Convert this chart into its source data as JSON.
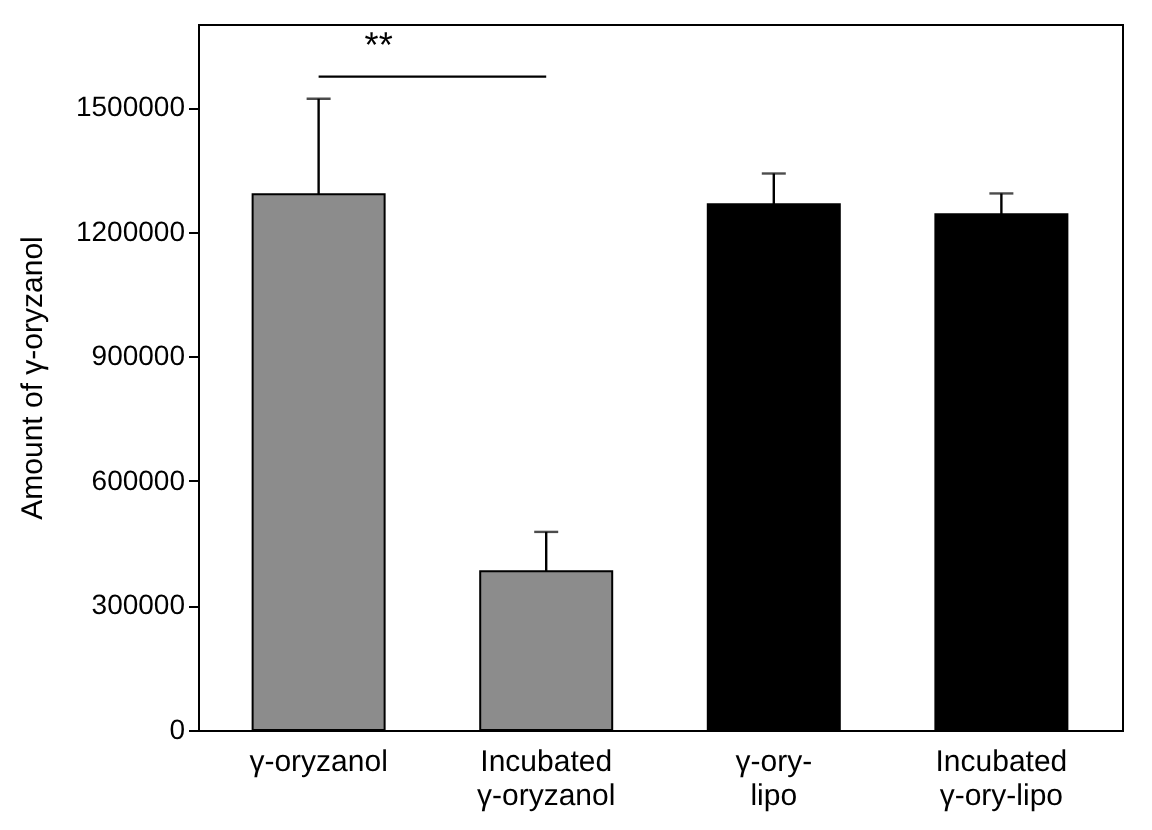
{
  "chart_data": {
    "type": "bar",
    "ylabel": "Amount of γ-oryzanol",
    "categories": [
      "γ-oryzanol",
      "Incubated γ-oryzanol",
      "γ-ory-lipo",
      "Incubated γ-ory-lipo"
    ],
    "values": [
      1290000,
      382000,
      1266000,
      1242000
    ],
    "colors": [
      "#8c8c8c",
      "#8c8c8c",
      "#000000",
      "#000000"
    ],
    "errors": [
      [
        1290000,
        1520000
      ],
      [
        382000,
        477000
      ],
      [
        1266000,
        1340000
      ],
      [
        1242000,
        1292000
      ]
    ],
    "ylim": [
      0,
      1700000
    ],
    "yticks": [
      0,
      300000,
      600000,
      900000,
      1200000,
      1500000
    ],
    "grid": false,
    "annotations": [
      "**"
    ]
  }
}
